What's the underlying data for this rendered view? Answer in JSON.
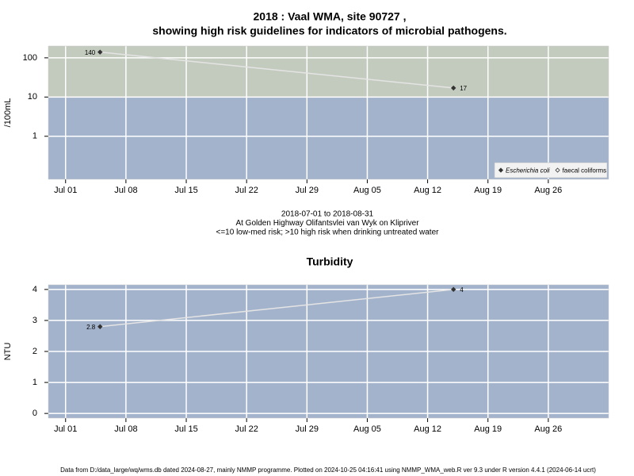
{
  "chart_data": [
    {
      "type": "line",
      "title": [
        "2018 : Vaal WMA, site 90727 ,",
        "showing high risk guidelines for indicators of microbial pathogens."
      ],
      "ylabel": "/100mL",
      "log_y": true,
      "ylim": [
        0.08,
        200
      ],
      "yticks": [
        1,
        10,
        100
      ],
      "xlim": [
        "2018-06-29",
        "2018-09-02"
      ],
      "xticks": [
        {
          "value": "2018-07-01",
          "label": "Jul 01"
        },
        {
          "value": "2018-07-08",
          "label": "Jul 08"
        },
        {
          "value": "2018-07-15",
          "label": "Jul 15"
        },
        {
          "value": "2018-07-22",
          "label": "Jul 22"
        },
        {
          "value": "2018-07-29",
          "label": "Jul 29"
        },
        {
          "value": "2018-08-05",
          "label": "Aug 05"
        },
        {
          "value": "2018-08-12",
          "label": "Aug 12"
        },
        {
          "value": "2018-08-19",
          "label": "Aug 19"
        },
        {
          "value": "2018-08-26",
          "label": "Aug 26"
        }
      ],
      "x": [
        "2018-07-05",
        "2018-08-15"
      ],
      "series": [
        {
          "name": "Escherichia coli",
          "color": "#333333",
          "values": [
            140,
            17
          ]
        },
        {
          "name": "faecal coliforms",
          "color": "#333333",
          "values": [
            null,
            null
          ]
        }
      ],
      "threshold": 10,
      "band_colors": [
        "#a3b3cc",
        "#c3cbbe"
      ],
      "grid": true,
      "legend": "bottom-right",
      "annotations": [
        "2018-07-01 to 2018-08-31",
        "At Golden Highway Olifantsvlei van Wyk on Klipriver",
        "<=10 low-med risk; >10 high risk when drinking untreated water"
      ]
    },
    {
      "type": "line",
      "title": [
        "Turbidity"
      ],
      "ylabel": "NTU",
      "log_y": false,
      "ylim": [
        -0.15,
        4.15
      ],
      "yticks": [
        0,
        1,
        2,
        3,
        4
      ],
      "xlim": [
        "2018-06-29",
        "2018-09-02"
      ],
      "xticks": [
        {
          "value": "2018-07-01",
          "label": "Jul 01"
        },
        {
          "value": "2018-07-08",
          "label": "Jul 08"
        },
        {
          "value": "2018-07-15",
          "label": "Jul 15"
        },
        {
          "value": "2018-07-22",
          "label": "Jul 22"
        },
        {
          "value": "2018-07-29",
          "label": "Jul 29"
        },
        {
          "value": "2018-08-05",
          "label": "Aug 05"
        },
        {
          "value": "2018-08-12",
          "label": "Aug 12"
        },
        {
          "value": "2018-08-19",
          "label": "Aug 19"
        },
        {
          "value": "2018-08-26",
          "label": "Aug 26"
        }
      ],
      "x": [
        "2018-07-05",
        "2018-08-15"
      ],
      "series": [
        {
          "name": "Turbidity",
          "color": "#333333",
          "values": [
            2.8,
            4
          ]
        }
      ],
      "band_colors": [
        "#a3b3cc"
      ],
      "grid": true
    }
  ],
  "footer": "Data from D:/data_large/wq/wms.db dated 2024-08-27, mainly NMMP programme. Plotted on 2024-10-25 04:16:41 using NMMP_WMA_web.R ver 9.3 under R version 4.4.1 (2024-06-14 ucrt)"
}
